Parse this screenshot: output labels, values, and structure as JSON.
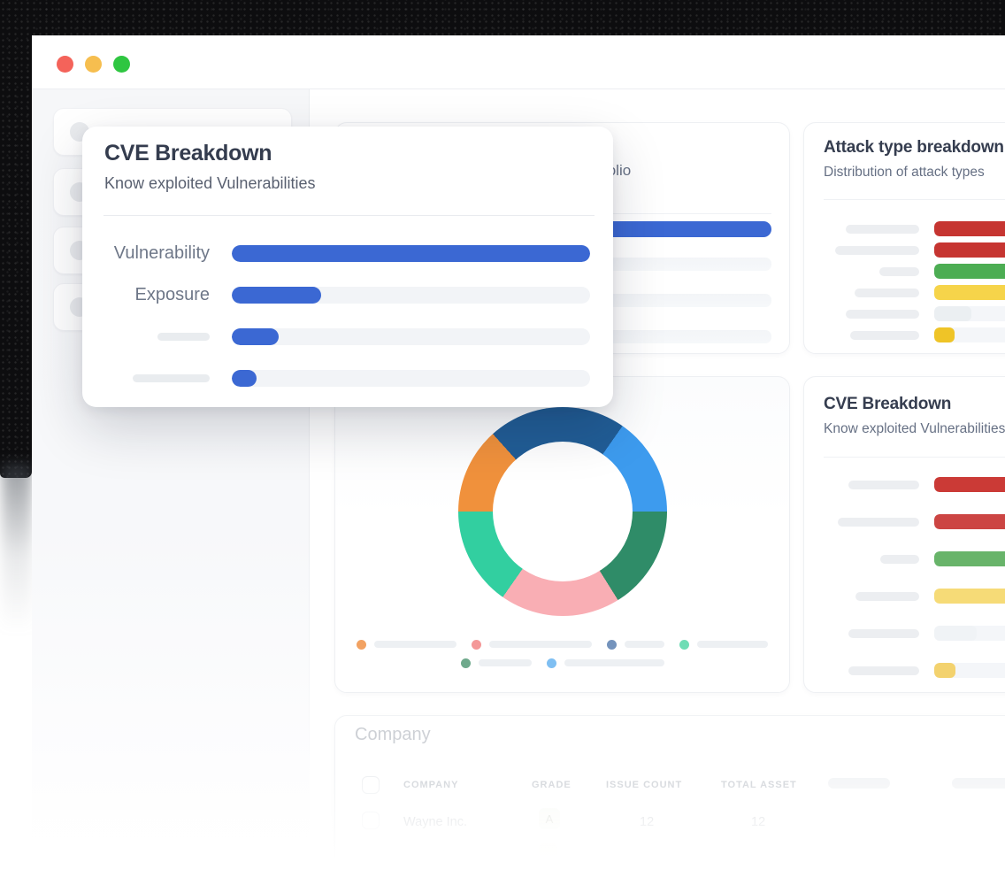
{
  "colors": {
    "accent_blue": "#3B68D3",
    "bar_track": "#F2F4F7",
    "placeholder_gray": "#E9ECEF"
  },
  "window": {
    "traffic_lights": [
      {
        "name": "close",
        "color": "#F4635A"
      },
      {
        "name": "minimize",
        "color": "#F6BE4F"
      },
      {
        "name": "zoom",
        "color": "#2FC641"
      }
    ]
  },
  "popup": {
    "title": "CVE Breakdown",
    "subtitle": "Know exploited Vulnerabilities",
    "rows": [
      {
        "label": "Vulnerability",
        "percent": 100
      },
      {
        "label": "Exposure",
        "percent": 25
      },
      {
        "label": "",
        "label_placeholder_width": 59,
        "percent": 13
      },
      {
        "label": "",
        "label_placeholder_width": 87,
        "percent": 7
      }
    ]
  },
  "portfolio_card": {
    "subtitle_visible_fragment": "folio",
    "bars": [
      {
        "style": "blue",
        "percent": 100
      },
      {
        "style": "track"
      },
      {
        "style": "track"
      },
      {
        "style": "track"
      }
    ]
  },
  "attack_card": {
    "title": "Attack type breakdown",
    "subtitle": "Distribution of attack types",
    "rows": [
      {
        "label_width": 83,
        "color": "#C63531",
        "percent": 100
      },
      {
        "label_width": 95,
        "color": "#C63531",
        "percent": 100
      },
      {
        "label_width": 45,
        "color": "#4CAD53",
        "percent": 100
      },
      {
        "label_width": 73,
        "color": "#F6D44A",
        "percent": 100
      },
      {
        "label_width": 83,
        "color": "#EBEFF2",
        "percent": 30
      },
      {
        "label_width": 78,
        "color": "#EFC427",
        "percent": 16
      }
    ]
  },
  "cve_card": {
    "title": "CVE Breakdown",
    "subtitle": "Know exploited Vulnerabilities",
    "rows": [
      {
        "label_width": 80,
        "color": "#CB3A36",
        "percent": 100
      },
      {
        "label_width": 92,
        "color": "#CC4543",
        "percent": 100
      },
      {
        "label_width": 44,
        "color": "#68B46A",
        "percent": 100
      },
      {
        "label_width": 72,
        "color": "#F6DB77",
        "percent": 100
      },
      {
        "label_width": 80,
        "color": "#F0F3F6",
        "percent": 34
      },
      {
        "label_width": 80,
        "color": "#F3D26E",
        "percent": 17
      }
    ]
  },
  "chart_data": {
    "type": "pie",
    "subtype": "donut",
    "start_angle_deg": 318,
    "donut_hole_ratio": 0.67,
    "segments": [
      {
        "name": "navy",
        "color": "#215D96",
        "degrees": 77
      },
      {
        "name": "light-blue",
        "color": "#3D9BEE",
        "degrees": 55
      },
      {
        "name": "sea-green",
        "color": "#2F8C68",
        "degrees": 58
      },
      {
        "name": "pink",
        "color": "#F9AEB4",
        "degrees": 67
      },
      {
        "name": "mint",
        "color": "#32CFA0",
        "degrees": 55
      },
      {
        "name": "orange",
        "color": "#F0913C",
        "degrees": 48
      }
    ],
    "legend": {
      "position": "bottom",
      "rows": [
        [
          {
            "color": "#F2A262",
            "line_width": 93
          },
          {
            "color": "#F49898",
            "line_width": 116
          },
          {
            "color": "#7493BC",
            "line_width": 45
          },
          {
            "color": "#6FDDB5",
            "line_width": 80
          }
        ],
        [
          {
            "color": "#6FA98C",
            "line_width": 60
          },
          {
            "color": "#7FBFF2",
            "line_width": 113
          }
        ]
      ]
    }
  },
  "company_table": {
    "title": "Company",
    "headers": [
      "COMPANY",
      "GRADE",
      "ISSUE COUNT",
      "TOTAL ASSET"
    ],
    "rows": [
      {
        "company": "Wayne Inc.",
        "grade": "A",
        "issue_count": "12",
        "total_asset": "12"
      }
    ]
  }
}
